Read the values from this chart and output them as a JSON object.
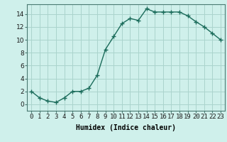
{
  "x": [
    0,
    1,
    2,
    3,
    4,
    5,
    6,
    7,
    8,
    9,
    10,
    11,
    12,
    13,
    14,
    15,
    16,
    17,
    18,
    19,
    20,
    21,
    22,
    23
  ],
  "y": [
    2,
    1,
    0.5,
    0.3,
    1,
    2,
    2,
    2.5,
    4.5,
    8.5,
    10.5,
    12.5,
    13.3,
    13.0,
    14.8,
    14.3,
    14.3,
    14.3,
    14.3,
    13.7,
    12.8,
    12.0,
    11.0,
    10.0
  ],
  "line_color": "#1a6b5a",
  "marker": "+",
  "marker_size": 4,
  "marker_lw": 1.0,
  "bg_color": "#cff0eb",
  "grid_color": "#aad4cd",
  "xlabel": "Humidex (Indice chaleur)",
  "ylim": [
    -1,
    15.5
  ],
  "xlim": [
    -0.5,
    23.5
  ],
  "yticks": [
    0,
    2,
    4,
    6,
    8,
    10,
    12,
    14
  ],
  "xtick_labels": [
    "0",
    "1",
    "2",
    "3",
    "4",
    "5",
    "6",
    "7",
    "8",
    "9",
    "10",
    "11",
    "12",
    "13",
    "14",
    "15",
    "16",
    "17",
    "18",
    "19",
    "20",
    "21",
    "22",
    "23"
  ],
  "label_fontsize": 7,
  "tick_fontsize": 6.5,
  "spine_color": "#4a7a72"
}
